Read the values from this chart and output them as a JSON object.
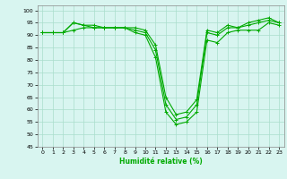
{
  "xlabel": "Humidité relative (%)",
  "xlim": [
    -0.5,
    23.5
  ],
  "ylim": [
    45,
    102
  ],
  "yticks": [
    45,
    50,
    55,
    60,
    65,
    70,
    75,
    80,
    85,
    90,
    95,
    100
  ],
  "xticks": [
    0,
    1,
    2,
    3,
    4,
    5,
    6,
    7,
    8,
    9,
    10,
    11,
    12,
    13,
    14,
    15,
    16,
    17,
    18,
    19,
    20,
    21,
    22,
    23
  ],
  "bg_color": "#d8f5f0",
  "grid_color": "#aaddcc",
  "line_color": "#00aa00",
  "line1": [
    91,
    91,
    91,
    92,
    93,
    93,
    93,
    93,
    93,
    91,
    90,
    81,
    59,
    54,
    55,
    59,
    88,
    87,
    91,
    92,
    92,
    92,
    95,
    94
  ],
  "line2": [
    91,
    91,
    91,
    95,
    94,
    93,
    93,
    93,
    93,
    92,
    91,
    84,
    62,
    56,
    57,
    62,
    91,
    90,
    93,
    93,
    94,
    95,
    96,
    95
  ],
  "line3": [
    91,
    91,
    91,
    95,
    94,
    94,
    93,
    93,
    93,
    93,
    92,
    86,
    65,
    58,
    59,
    64,
    92,
    91,
    94,
    93,
    95,
    96,
    97,
    95
  ]
}
